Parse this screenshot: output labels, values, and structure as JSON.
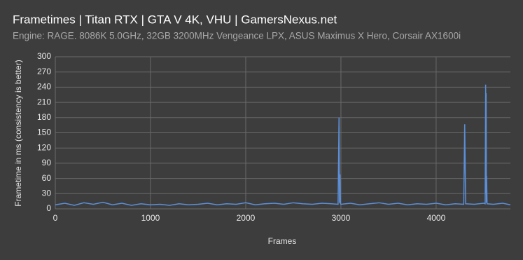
{
  "chart_data": {
    "type": "line",
    "title": "Frametimes | Titan RTX | GTA V 4K, VHU | GamersNexus.net",
    "subtitle": "Engine: RAGE. 8086K 5.0GHz, 32GB 3200MHz Vengeance LPX, ASUS Maximus X Hero, Corsair AX1600i",
    "x_label": "Frames",
    "y_label": "Frametime in ms (consistency is better)",
    "x": [
      0,
      100,
      200,
      300,
      400,
      500,
      600,
      700,
      800,
      900,
      1000,
      1100,
      1200,
      1300,
      1400,
      1500,
      1600,
      1700,
      1800,
      1900,
      2000,
      2100,
      2200,
      2300,
      2400,
      2500,
      2600,
      2700,
      2800,
      2900,
      2970,
      2980,
      2985,
      2990,
      2995,
      3000,
      3100,
      3200,
      3300,
      3400,
      3500,
      3600,
      3700,
      3800,
      3900,
      4000,
      4100,
      4200,
      4290,
      4300,
      4310,
      4400,
      4500,
      4515,
      4520,
      4523,
      4525,
      4528,
      4530,
      4535,
      4600,
      4700,
      4780
    ],
    "series": [
      {
        "name": "Frametime",
        "color": "#5b8fd9",
        "values": [
          8,
          11,
          7,
          12,
          9,
          13,
          8,
          11,
          7,
          10,
          8,
          9,
          7,
          10,
          8,
          9,
          11,
          8,
          10,
          9,
          12,
          8,
          10,
          11,
          9,
          12,
          10,
          9,
          11,
          10,
          9,
          180,
          12,
          68,
          10,
          9,
          11,
          8,
          10,
          12,
          9,
          11,
          8,
          10,
          9,
          11,
          8,
          10,
          9,
          167,
          10,
          9,
          11,
          10,
          245,
          30,
          228,
          12,
          65,
          10,
          9,
          11,
          8
        ]
      }
    ],
    "xlim": [
      0,
      4780
    ],
    "xticks": [
      0,
      1000,
      2000,
      3000,
      4000
    ],
    "ylim": [
      0,
      300
    ],
    "yticks": [
      0,
      30,
      60,
      90,
      120,
      150,
      180,
      210,
      240,
      270,
      300
    ],
    "grid": true
  }
}
